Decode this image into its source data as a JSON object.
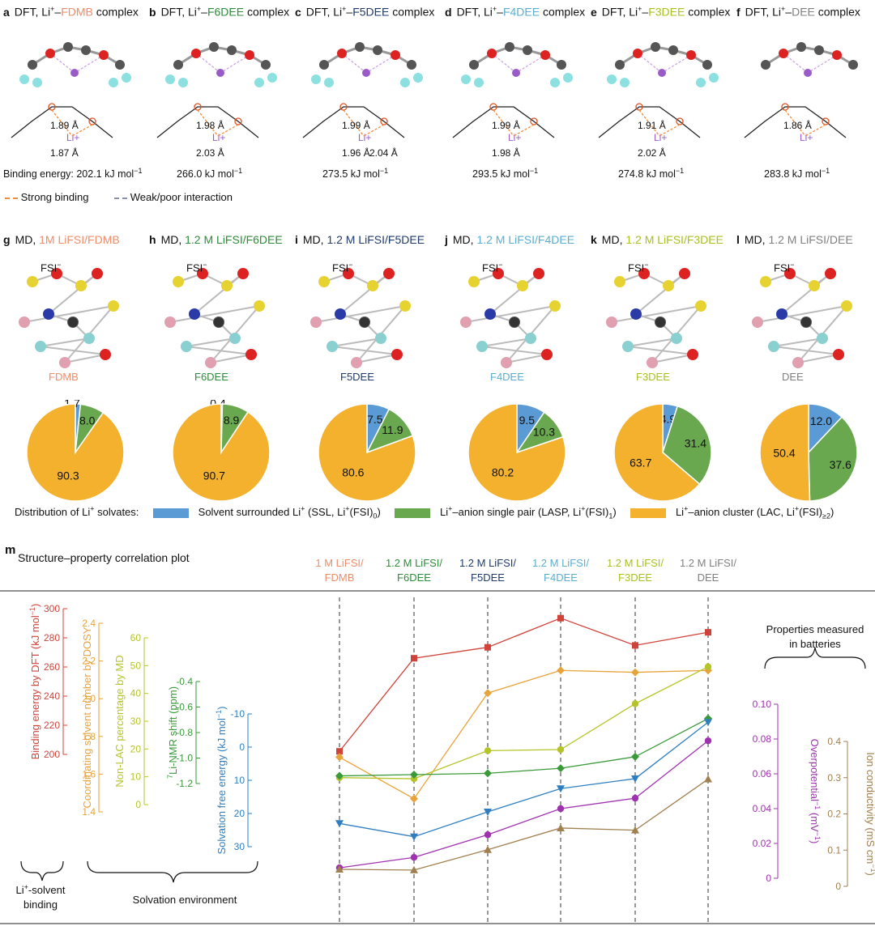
{
  "complexes": [
    {
      "letter": "a",
      "prefix": "DFT, Li",
      "sup": "+",
      "mid": "–",
      "solvent": "FDMB",
      "suffix": " complex",
      "color": "#f08c6a",
      "energy": "Binding energy: 202.1 kJ mol",
      "energy_sup": "−1",
      "dist": [
        "1.89 Å",
        "1.87 Å"
      ]
    },
    {
      "letter": "b",
      "prefix": "DFT, Li",
      "sup": "+",
      "mid": "–",
      "solvent": "F6DEE",
      "suffix": " complex",
      "color": "#2e8b3a",
      "energy": "266.0 kJ mol",
      "energy_sup": "−1",
      "dist": [
        "1.98 Å",
        "2.03 Å"
      ]
    },
    {
      "letter": "c",
      "prefix": "DFT, Li",
      "sup": "+",
      "mid": "–",
      "solvent": "F5DEE",
      "suffix": " complex",
      "color": "#1f3a6b",
      "energy": "273.5 kJ mol",
      "energy_sup": "−1",
      "dist": [
        "1.99 Å",
        "1.96 Å",
        "2.04 Å"
      ]
    },
    {
      "letter": "d",
      "prefix": "DFT, Li",
      "sup": "+",
      "mid": "–",
      "solvent": "F4DEE",
      "suffix": " complex",
      "color": "#5aaed0",
      "energy": "293.5 kJ mol",
      "energy_sup": "−1",
      "dist": [
        "1.99 Å",
        "1.98 Å"
      ]
    },
    {
      "letter": "e",
      "prefix": "DFT, Li",
      "sup": "+",
      "mid": "–",
      "solvent": "F3DEE",
      "suffix": " complex",
      "color": "#a8c21c",
      "energy": "274.8 kJ mol",
      "energy_sup": "−1",
      "dist": [
        "1.91 Å",
        "2.02 Å"
      ]
    },
    {
      "letter": "f",
      "prefix": "DFT, Li",
      "sup": "+",
      "mid": "–",
      "solvent": "DEE",
      "suffix": " complex",
      "color": "#808080",
      "energy": "283.8 kJ mol",
      "energy_sup": "−1",
      "dist": [
        "1.86 Å"
      ]
    }
  ],
  "binding_legend": {
    "strong": "Strong binding",
    "weak": "Weak/poor interaction"
  },
  "md": [
    {
      "letter": "g",
      "prefix": "MD, ",
      "electrolyte": "1M LiFSI/FDMB",
      "color": "#f08c6a",
      "solvent": "FDMB",
      "fsi": [
        "FSI",
        "−"
      ],
      "pie": [
        1.7,
        8.0,
        90.3
      ]
    },
    {
      "letter": "h",
      "prefix": "MD, ",
      "electrolyte": "1.2 M LiFSI/F6DEE",
      "color": "#2e8b3a",
      "solvent": "F6DEE",
      "fsi": [
        "FSI",
        "−"
      ],
      "pie": [
        0.4,
        8.9,
        90.7
      ]
    },
    {
      "letter": "i",
      "prefix": "MD, ",
      "electrolyte": "1.2 M LiFSI/F5DEE",
      "color": "#1f3a6b",
      "solvent": "F5DEE",
      "fsi": [
        "FSI",
        "−"
      ],
      "pie": [
        7.5,
        11.9,
        80.6
      ]
    },
    {
      "letter": "j",
      "prefix": "MD, ",
      "electrolyte": "1.2 M LiFSI/F4DEE",
      "color": "#5aaed0",
      "solvent": "F4DEE",
      "fsi": [
        "FSI",
        "−"
      ],
      "pie": [
        9.5,
        10.3,
        80.2
      ]
    },
    {
      "letter": "k",
      "prefix": "MD, ",
      "electrolyte": "1.2 M LiFSI/F3DEE",
      "color": "#a8c21c",
      "solvent": "F3DEE",
      "fsi": [
        "FSI",
        "−"
      ],
      "pie": [
        4.9,
        31.4,
        63.7
      ]
    },
    {
      "letter": "l",
      "prefix": "MD, ",
      "electrolyte": "1.2 M LiFSI/DEE",
      "color": "#808080",
      "solvent": "DEE",
      "fsi": [
        "FSI",
        "−"
      ],
      "pie": [
        12.0,
        37.6,
        50.4
      ]
    }
  ],
  "pie_colors": {
    "ssl": "#5b9bd5",
    "lasp": "#6aa84f",
    "lac": "#f4b12e"
  },
  "solvate_legend": {
    "title": "Distribution of Li",
    "title_sup": "+",
    "title_tail": " solvates:",
    "ssl": "Solvent surrounded Li",
    "ssl_tail": " (SSL, Li",
    "ssl_end": "(FSI)",
    "ssl_sub": "0",
    "lasp": "Li",
    "lasp_tail": "–anion single pair (LASP, Li",
    "lasp_end": "(FSI)",
    "lasp_sub": "1",
    "lac": "Li",
    "lac_tail": "–anion cluster (LAC, Li",
    "lac_end": "(FSI)",
    "lac_sub": "≥2",
    "plus": "+"
  },
  "panel_m": {
    "letter": "m",
    "title": "Structure–property correlation plot",
    "columns": [
      {
        "l1": "1 M LiFSI/",
        "l2": "FDMB",
        "color": "#f08c6a"
      },
      {
        "l1": "1.2 M LiFSI/",
        "l2": "F6DEE",
        "color": "#2e8b3a"
      },
      {
        "l1": "1.2 M LiFSI/",
        "l2": "F5DEE",
        "color": "#1f3a6b"
      },
      {
        "l1": "1.2 M LiFSI/",
        "l2": "F4DEE",
        "color": "#5aaed0"
      },
      {
        "l1": "1.2 M LiFSI/",
        "l2": "F3DEE",
        "color": "#a8c21c"
      },
      {
        "l1": "1.2 M LiFSI/",
        "l2": "DEE",
        "color": "#808080"
      }
    ],
    "properties_label": [
      "Properties measured",
      "in batteries"
    ],
    "group_binding": [
      "Li",
      "+",
      "-solvent",
      "binding"
    ],
    "group_solvation": "Solvation environment",
    "axes": [
      {
        "label": "Binding energy by DFT (kJ mol",
        "label_sup": "−1",
        "label_end": ")",
        "color": "#d0433a",
        "ticks": [
          "300",
          "280",
          "260",
          "240",
          "220",
          "200"
        ]
      },
      {
        "label": "Coordinating solvent number by DOSY",
        "color": "#e8a33a",
        "ticks": [
          "2.4",
          "2.2",
          "2.0",
          "1.8",
          "1.6",
          "1.4"
        ]
      },
      {
        "label": "Non-LAC percentage by MD",
        "color": "#b5c428",
        "ticks": [
          "60",
          "50",
          "40",
          "30",
          "20",
          "10",
          "0"
        ]
      },
      {
        "label": "Li-NMR shift (ppm)",
        "label_pre": "7",
        "color": "#3a9a3a",
        "ticks": [
          "-0.4",
          "-0.6",
          "-0.8",
          "-1.0",
          "-1.2"
        ]
      },
      {
        "label": "Solvation free energy (kJ mol",
        "label_sup": "−1",
        "label_end": ")",
        "color": "#2f7fc0",
        "ticks": [
          "-10",
          "0",
          "10",
          "20",
          "30"
        ]
      },
      {
        "label": "Overpotential",
        "label_sup": "−1",
        "label_end": " (mV",
        "label_end_sup": "−1",
        "label_close": ")",
        "color": "#a032b0",
        "ticks": [
          "0.10",
          "0.08",
          "0.06",
          "0.04",
          "0.02",
          "0"
        ]
      },
      {
        "label": "Ion conductivity (mS cm",
        "label_sup": "−1",
        "label_end": ")",
        "color": "#a08050",
        "ticks": [
          "0.4",
          "0.3",
          "0.2",
          "0.1",
          "0"
        ]
      }
    ]
  },
  "chart_data": {
    "type": "line",
    "title": "Structure–property correlation plot",
    "categories": [
      "1 M LiFSI/FDMB",
      "1.2 M LiFSI/F6DEE",
      "1.2 M LiFSI/F5DEE",
      "1.2 M LiFSI/F4DEE",
      "1.2 M LiFSI/F3DEE",
      "1.2 M LiFSI/DEE"
    ],
    "series": [
      {
        "name": "Binding energy by DFT (kJ mol−1)",
        "color": "#d0433a",
        "marker": "square",
        "values": [
          202.1,
          266.0,
          273.5,
          293.5,
          274.8,
          283.8
        ],
        "ylim": [
          200,
          300
        ]
      },
      {
        "name": "Coordinating solvent number by DOSY",
        "color": "#e8a33a",
        "marker": "diamond",
        "values": [
          1.69,
          1.47,
          2.03,
          2.15,
          2.14,
          2.15
        ],
        "ylim": [
          1.4,
          2.4
        ]
      },
      {
        "name": "Non-LAC percentage by MD",
        "color": "#b5c428",
        "marker": "circle",
        "values": [
          9.7,
          9.3,
          19.4,
          19.8,
          36.3,
          49.6
        ],
        "ylim": [
          0,
          60
        ]
      },
      {
        "name": "7Li-NMR shift (ppm)",
        "color": "#3a9a3a",
        "marker": "diamond",
        "values": [
          -1.14,
          -1.13,
          -1.12,
          -1.08,
          -0.99,
          -0.69
        ],
        "ylim": [
          -1.2,
          -0.4
        ]
      },
      {
        "name": "Solvation free energy (kJ mol−1)",
        "color": "#2f7fc0",
        "marker": "triangle-down",
        "values": [
          23,
          27,
          19.5,
          12.5,
          9.5,
          -7.5
        ],
        "ylim": [
          -10,
          30
        ]
      },
      {
        "name": "Overpotential−1 (mV−1)",
        "color": "#a032b0",
        "marker": "circle",
        "values": [
          0.006,
          0.012,
          0.025,
          0.04,
          0.046,
          0.079
        ],
        "ylim": [
          0,
          0.1
        ]
      },
      {
        "name": "Ion conductivity (mS cm−1)",
        "color": "#a08050",
        "marker": "triangle-up",
        "values": [
          0.047,
          0.045,
          0.101,
          0.161,
          0.155,
          0.296
        ],
        "ylim": [
          0,
          0.4
        ]
      }
    ]
  }
}
